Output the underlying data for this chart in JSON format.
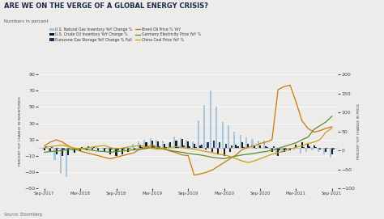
{
  "title": "ARE WE ON THE VERGE OF A GLOBAL ENERGY CRISIS?",
  "subtitle": "Numbers in percent",
  "source": "Source: Bloomberg",
  "left_ylabel": "PERCENT YOY CHANGE IN INVENTORIES",
  "right_ylabel": "PERCENT YOY CHANGE IN PRICE",
  "left_ylim": [
    -50,
    90
  ],
  "right_ylim": [
    -100,
    200
  ],
  "left_yticks": [
    -50.0,
    -30.0,
    -10.0,
    10.0,
    30.0,
    50.0,
    70.0,
    90.0
  ],
  "right_yticks": [
    -100.0,
    -50.0,
    0.0,
    50.0,
    100.0,
    150.0,
    200.0
  ],
  "xtick_labels": [
    "Sep-2017",
    "Mar-2018",
    "Sep-2018",
    "Mar-2019",
    "Sep-2019",
    "Mar-2020",
    "Sep-2020",
    "Mar-2021",
    "Sep-2021"
  ],
  "background_color": "#edecea",
  "bar_light_blue": "#9ec5e0",
  "bar_black": "#111111",
  "bar_navy": "#1e3060",
  "line_orange": "#c8780a",
  "line_green": "#5c8c28",
  "line_gold": "#c8a010",
  "title_color": "#1a2a4a",
  "legend_labels": [
    "U.S. Natural Gas Inventory YoY Change %",
    "U.S. Crude Oil Inventory YoY Change %",
    "Eurozone Gas Storage YoY Change % Full",
    "Brent Oil Price % YoY",
    "Germany Electricity Price YoY %",
    "China Coal Price YoY %"
  ],
  "nat_gas": [
    -2,
    -4,
    -15,
    -32,
    -36,
    -4,
    -3,
    -1,
    1,
    2,
    -2,
    -4,
    -4,
    -2,
    1,
    5,
    8,
    10,
    12,
    10,
    9,
    6,
    14,
    12,
    10,
    8,
    34,
    52,
    70,
    50,
    32,
    28,
    20,
    16,
    13,
    11,
    9,
    9,
    -4,
    -9,
    -6,
    -4,
    -3,
    -7,
    -5,
    -3,
    -5,
    -8,
    -12
  ],
  "crude_oil": [
    -3,
    -5,
    -8,
    -10,
    -9,
    -6,
    -4,
    -3,
    -2,
    -3,
    -5,
    -8,
    -10,
    -8,
    -5,
    -3,
    4,
    7,
    9,
    8,
    5,
    7,
    9,
    11,
    8,
    5,
    3,
    -2,
    -5,
    -8,
    -10,
    -5,
    4,
    7,
    5,
    3,
    3,
    2,
    -5,
    -10,
    -5,
    -3,
    4,
    7,
    5,
    3,
    -2,
    -5,
    -8
  ],
  "eurozone_gas": [
    2,
    1,
    -1,
    -2,
    -1,
    0,
    1,
    2,
    1,
    0,
    -1,
    -2,
    -3,
    -2,
    -1,
    0,
    1,
    2,
    3,
    2,
    1,
    0,
    2,
    3,
    2,
    1,
    4,
    7,
    9,
    7,
    5,
    3,
    2,
    1,
    0,
    -1,
    0,
    1,
    2,
    -3,
    -2,
    -1,
    0,
    1,
    2,
    1,
    0,
    -1,
    -2
  ],
  "brent_oil": [
    12,
    22,
    28,
    22,
    12,
    4,
    -2,
    -6,
    -10,
    -14,
    -18,
    -22,
    -18,
    -14,
    -10,
    -6,
    4,
    8,
    14,
    8,
    4,
    -2,
    -6,
    -12,
    -14,
    -65,
    -62,
    -58,
    -52,
    -42,
    -32,
    -22,
    -12,
    2,
    8,
    12,
    18,
    22,
    28,
    160,
    168,
    172,
    128,
    78,
    58,
    48,
    52,
    58,
    62
  ],
  "germany_elec": [
    -5,
    -3,
    -2,
    0,
    2,
    3,
    5,
    3,
    0,
    -2,
    -3,
    -5,
    -3,
    -2,
    0,
    2,
    3,
    5,
    8,
    5,
    3,
    0,
    -3,
    -5,
    -8,
    -10,
    -12,
    -15,
    -18,
    -20,
    -22,
    -18,
    -15,
    -12,
    -10,
    -8,
    -5,
    -3,
    0,
    5,
    10,
    15,
    20,
    28,
    35,
    55,
    65,
    75,
    90
  ],
  "china_coal": [
    8,
    10,
    12,
    14,
    10,
    6,
    4,
    6,
    9,
    11,
    13,
    7,
    4,
    6,
    9,
    11,
    13,
    9,
    5,
    3,
    5,
    8,
    10,
    8,
    5,
    3,
    0,
    -3,
    -6,
    -10,
    -12,
    -16,
    -22,
    -28,
    -32,
    -28,
    -22,
    -16,
    -10,
    -6,
    -2,
    4,
    8,
    12,
    18,
    22,
    28,
    48,
    58
  ]
}
